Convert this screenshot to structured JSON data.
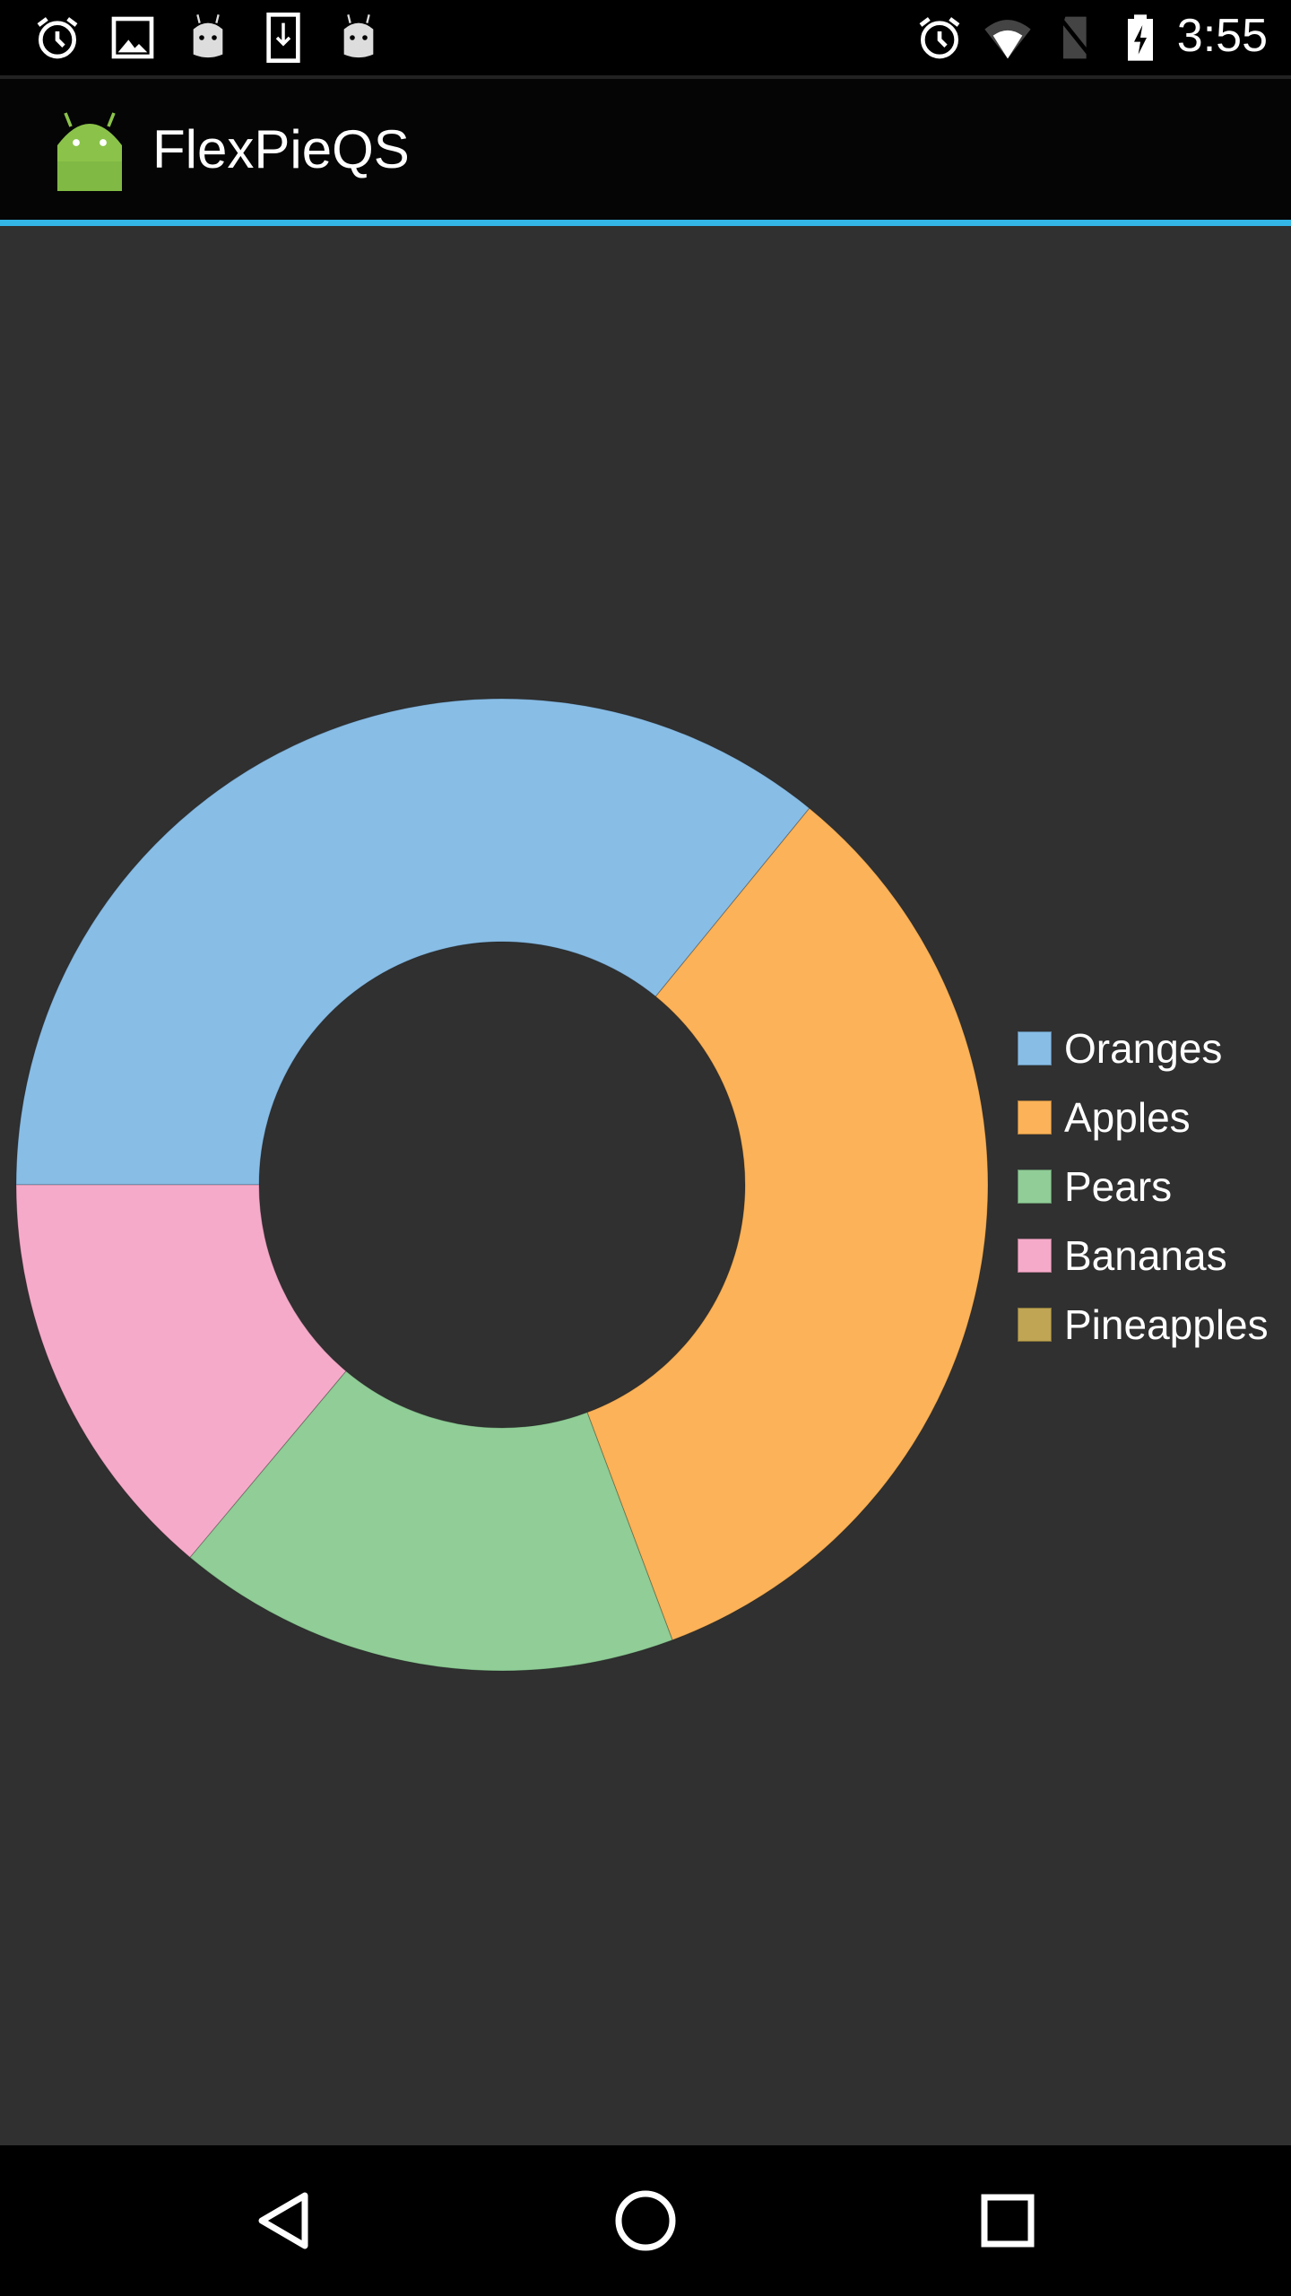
{
  "status_bar": {
    "time": "3:55",
    "left_icons": [
      "alarm-icon",
      "image-icon",
      "android-icon",
      "download-icon",
      "android-icon"
    ],
    "right_icons": [
      "alarm-icon",
      "wifi-icon",
      "no-sim-icon",
      "battery-charging-icon"
    ]
  },
  "app_bar": {
    "title": "FlexPieQS",
    "logo": "android-logo-icon",
    "accent": "#33b5e5"
  },
  "nav_bar": {
    "icons": [
      "back-icon",
      "home-icon",
      "recents-icon"
    ]
  },
  "chart_data": {
    "type": "pie",
    "donut": true,
    "inner_radius_ratio": 0.5,
    "start_angle": "left (9 o'clock), clockwise",
    "categories": [
      "Oranges",
      "Apples",
      "Pears",
      "Bananas",
      "Pineapples"
    ],
    "values": [
      35.9,
      33.4,
      16.8,
      13.9,
      0
    ],
    "colors": [
      "#88bde6",
      "#fbb258",
      "#90cd97",
      "#f6aac9",
      "#bfa554"
    ],
    "legend_position": "right"
  }
}
